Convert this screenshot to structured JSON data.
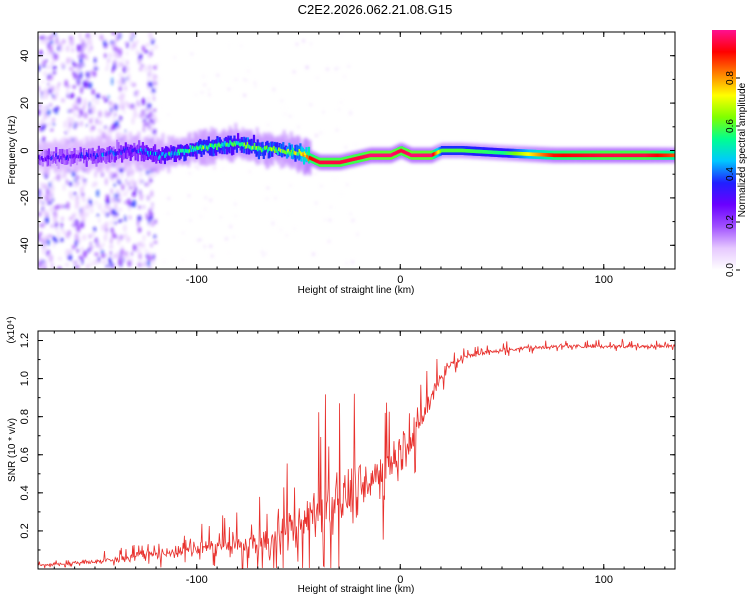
{
  "title": "C2E2.2026.062.21.08.G15",
  "colors": {
    "line": "#e8302c",
    "axis": "#000000",
    "colormap": [
      "#ffffff",
      "#e6c8ff",
      "#a050ff",
      "#6a00ff",
      "#2020ff",
      "#00c8ff",
      "#00ff90",
      "#80ff00",
      "#ffff00",
      "#ff8000",
      "#ff0000",
      "#ff1090"
    ]
  },
  "chart_data": [
    {
      "type": "heatmap",
      "name": "spectrogram",
      "xlabel": "Height of straight line (km)",
      "ylabel": "Frequency (Hz)",
      "xlim": [
        -178,
        135
      ],
      "ylim": [
        -50,
        50
      ],
      "x_ticks": [
        -100,
        0,
        100
      ],
      "x_tick_labels": [
        "-100",
        "0",
        "100"
      ],
      "y_ticks": [
        -40,
        -20,
        0,
        20,
        40
      ],
      "y_tick_labels": [
        "-40",
        "-20",
        "0",
        "20",
        "40"
      ],
      "colorbar": {
        "label": "Normalized spectral amplitude",
        "range": [
          0,
          1
        ],
        "ticks": [
          0.0,
          0.2,
          0.4,
          0.6,
          0.8
        ],
        "tick_labels": [
          "0.0",
          "0.2",
          "0.4",
          "0.6",
          "0.8"
        ]
      },
      "ridge": {
        "x": [
          -175,
          -150,
          -130,
          -120,
          -110,
          -100,
          -90,
          -80,
          -70,
          -60,
          -50,
          -45,
          -40,
          -30,
          -20,
          -15,
          -10,
          -5,
          0,
          5,
          10,
          15,
          20,
          30,
          50,
          75,
          100,
          120,
          135
        ],
        "freq": [
          -3,
          -2,
          0,
          -2,
          -1,
          1,
          2,
          3,
          1,
          0,
          -1,
          -3,
          -5,
          -5,
          -3,
          -2,
          -2,
          -2,
          0,
          -2,
          -2,
          -2,
          0,
          0,
          -1,
          -2,
          -2,
          -2,
          -2
        ],
        "amplitude": [
          0.25,
          0.3,
          0.35,
          0.4,
          0.5,
          0.55,
          0.55,
          0.55,
          0.6,
          0.6,
          0.65,
          0.9,
          0.95,
          0.95,
          0.95,
          0.98,
          0.98,
          0.98,
          0.95,
          0.98,
          0.98,
          0.98,
          0.6,
          0.6,
          0.55,
          0.9,
          0.95,
          0.95,
          0.85
        ]
      },
      "noise_region_x": [
        -178,
        -120
      ]
    },
    {
      "type": "line",
      "name": "snr",
      "xlabel": "Height of straight line (km)",
      "ylabel": "SNR (10 * v/v)",
      "y_multiplier": "(x10⁴)",
      "xlim": [
        -178,
        135
      ],
      "ylim": [
        0,
        1.25
      ],
      "x_ticks": [
        -100,
        0,
        100
      ],
      "x_tick_labels": [
        "-100",
        "0",
        "100"
      ],
      "y_ticks": [
        0.2,
        0.4,
        0.6,
        0.8,
        1.0,
        1.2
      ],
      "y_tick_labels": [
        "0.2",
        "0.4",
        "0.6",
        "0.8",
        "1.0",
        "1.2"
      ],
      "series": [
        {
          "name": "SNR",
          "x": [
            -178,
            -160,
            -140,
            -120,
            -100,
            -80,
            -70,
            -60,
            -50,
            -45,
            -40,
            -35,
            -30,
            -25,
            -20,
            -15,
            -10,
            -5,
            0,
            5,
            10,
            15,
            20,
            25,
            30,
            40,
            50,
            60,
            80,
            100,
            120,
            135
          ],
          "trend": [
            0.02,
            0.03,
            0.05,
            0.08,
            0.11,
            0.12,
            0.13,
            0.16,
            0.22,
            0.27,
            0.3,
            0.32,
            0.36,
            0.4,
            0.44,
            0.46,
            0.5,
            0.56,
            0.62,
            0.68,
            0.76,
            0.9,
            1.02,
            1.08,
            1.11,
            1.13,
            1.15,
            1.16,
            1.17,
            1.17,
            1.17,
            1.17
          ],
          "amplitude": [
            0.02,
            0.03,
            0.05,
            0.07,
            0.1,
            0.14,
            0.18,
            0.26,
            0.32,
            0.36,
            0.4,
            0.42,
            0.44,
            0.44,
            0.4,
            0.38,
            0.36,
            0.34,
            0.32,
            0.3,
            0.28,
            0.22,
            0.12,
            0.07,
            0.05,
            0.04,
            0.03,
            0.03,
            0.03,
            0.03,
            0.03,
            0.03
          ]
        }
      ]
    }
  ]
}
